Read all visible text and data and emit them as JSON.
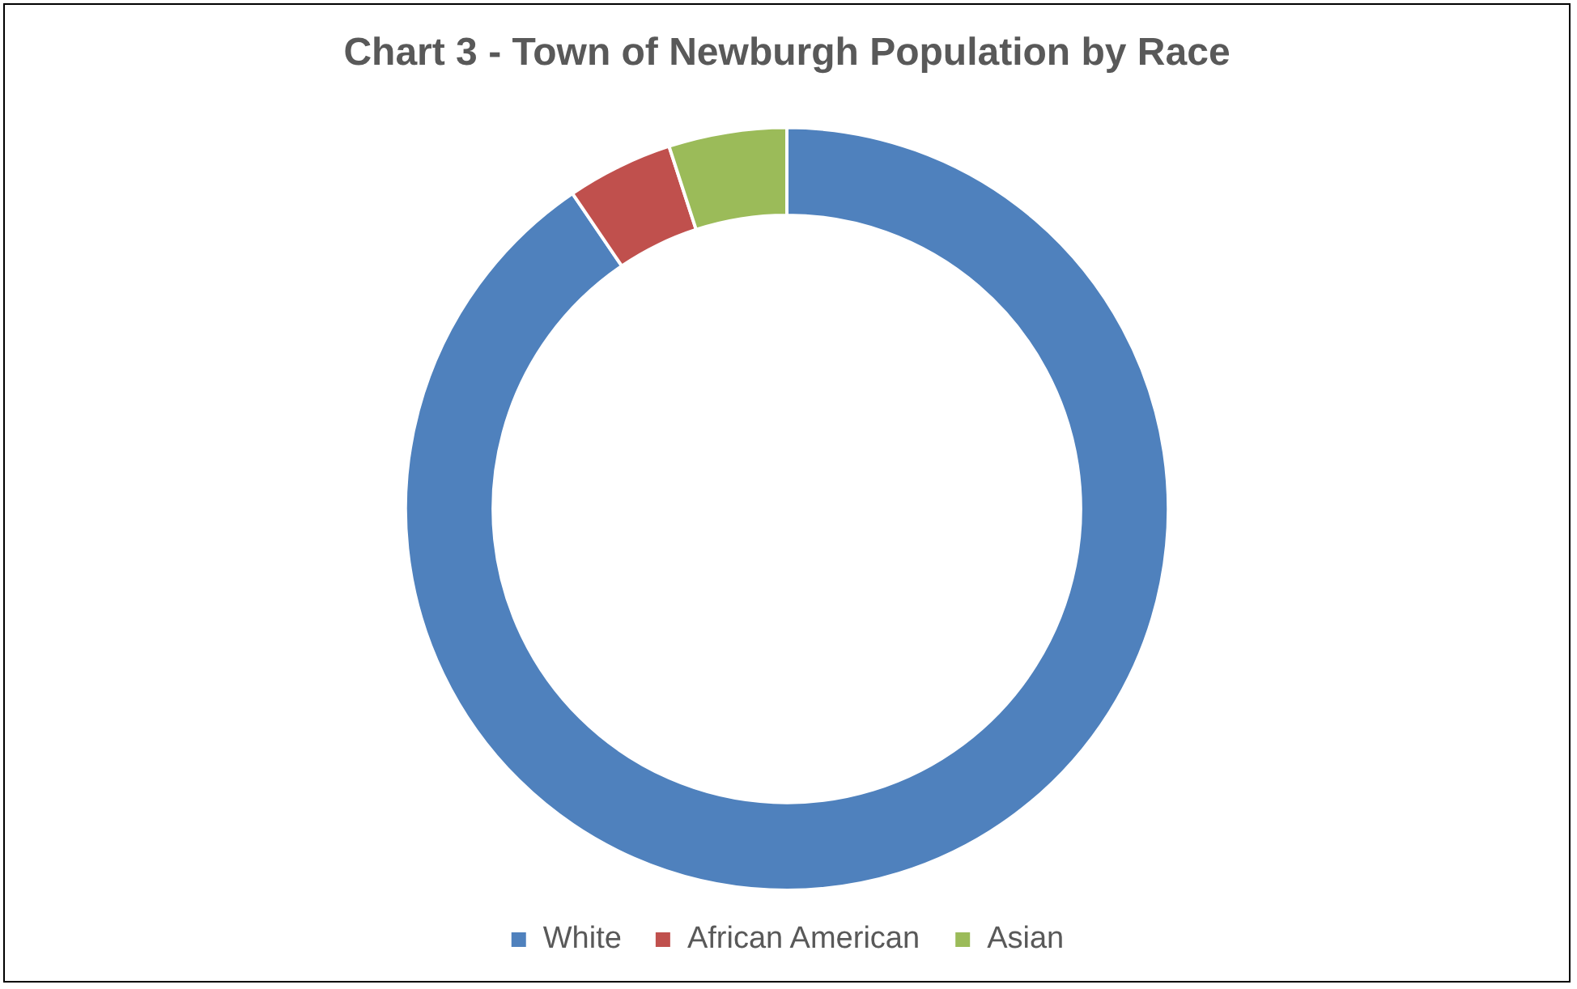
{
  "chart_data": {
    "type": "donut",
    "title": "Chart 3 - Town of Newburgh Population by Race",
    "categories": [
      "White",
      "African American",
      "Asian"
    ],
    "values": [
      90.5,
      4.5,
      5
    ],
    "colors": [
      "#4f81bd",
      "#c0504d",
      "#9bbb59"
    ],
    "legend": "bottom"
  }
}
